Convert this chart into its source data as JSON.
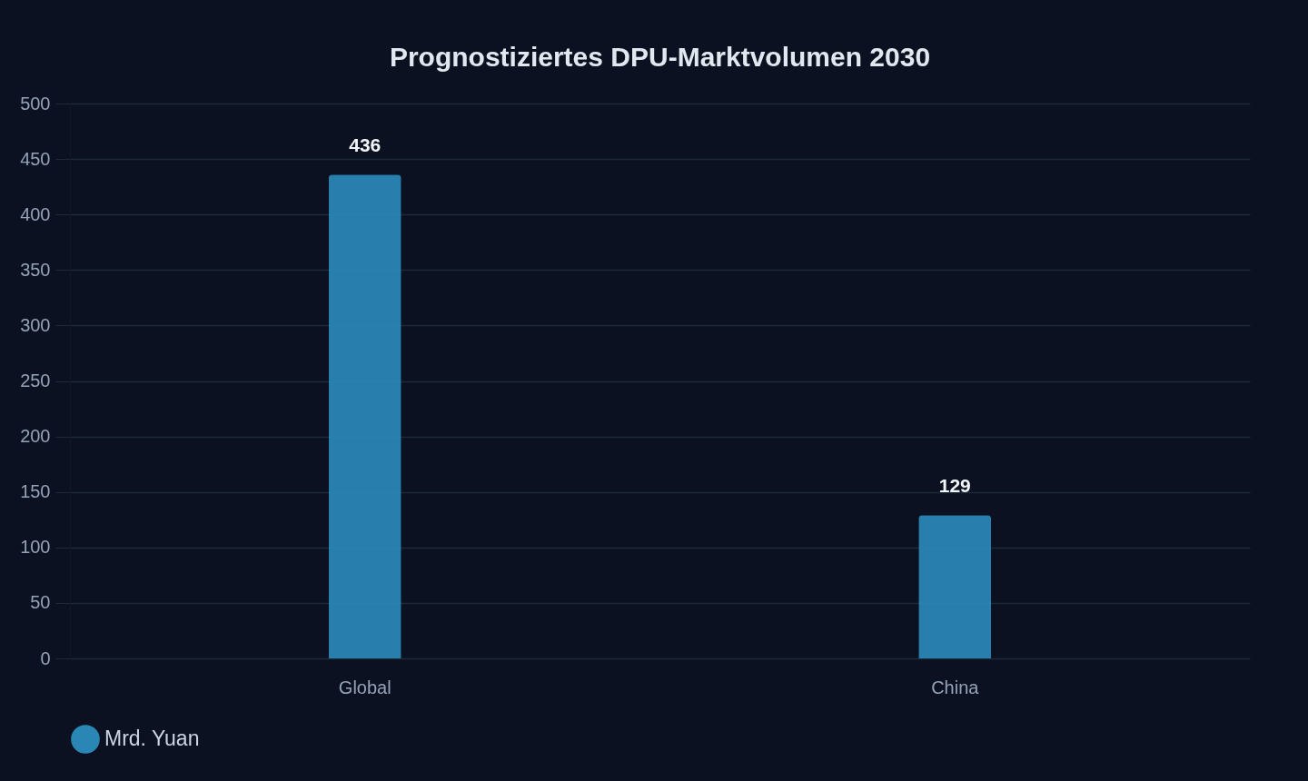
{
  "chart_data": {
    "type": "bar",
    "title": "Prognostiziertes DPU-Marktvolumen 2030",
    "categories": [
      "Global",
      "China"
    ],
    "series": [
      {
        "name": "Mrd. Yuan",
        "color": "#2a86b5",
        "values": [
          436,
          129
        ]
      }
    ],
    "ylim": [
      0,
      500
    ],
    "yticks": [
      0,
      50,
      100,
      150,
      200,
      250,
      300,
      350,
      400,
      450,
      500
    ],
    "grid": "y",
    "legend": "bottom",
    "data_labels": true
  }
}
